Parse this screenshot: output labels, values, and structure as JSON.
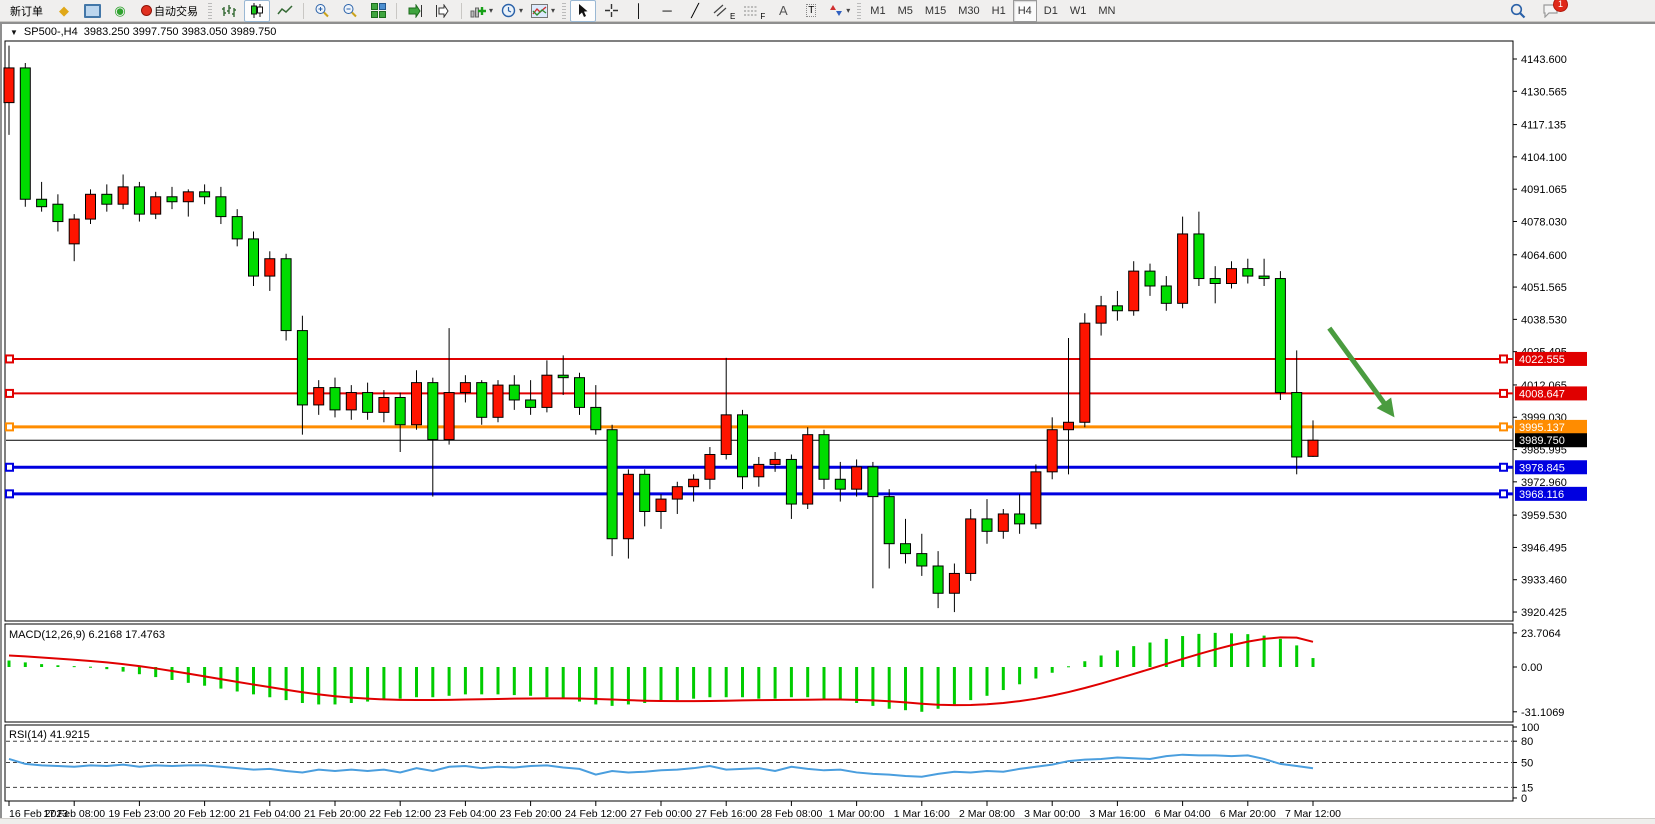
{
  "toolbar": {
    "new_order_label": "新订单",
    "autotrading_label": "自动交易",
    "timeframes": [
      "M1",
      "M5",
      "M15",
      "M30",
      "H1",
      "H4",
      "D1",
      "W1",
      "MN"
    ],
    "active_timeframe": "H4",
    "chat_badge": "1",
    "glyphs": {
      "metaeditor": "◆",
      "signals": "◉",
      "crosshair": "+",
      "vline": "│",
      "hline": "─",
      "trendline": "╱",
      "channel_letter": "E",
      "fibo_letter": "F",
      "text_tool": "A",
      "label_tool": "T",
      "caret": "▾",
      "title_triangle": "▼"
    }
  },
  "chart_window": {
    "symbol": "SP500-,H4",
    "ohlc_text": "3983.250 3997.750 3983.050 3989.750"
  },
  "indicators": {
    "macd_label": "MACD(12,26,9) 6.2168 17.4763",
    "rsi_label": "RSI(14) 41.9215"
  },
  "chart_data": {
    "type": "candlestick",
    "symbol": "SP500-",
    "timeframe": "H4",
    "current_ohlc": {
      "open": 3983.25,
      "high": 3997.75,
      "low": 3983.05,
      "close": 3989.75
    },
    "up_color": "#fe1400",
    "down_color": "#00dc00",
    "y_ticks": [
      "4143.600",
      "4130.565",
      "4117.135",
      "4104.100",
      "4091.065",
      "4078.030",
      "4064.600",
      "4051.565",
      "4038.530",
      "4025.495",
      "4012.065",
      "3999.030",
      "3985.995",
      "3972.960",
      "3959.530",
      "3946.495",
      "3933.460",
      "3920.425"
    ],
    "x_labels": [
      "16 Feb 2023",
      "17 Feb 08:00",
      "19 Feb 23:00",
      "20 Feb 12:00",
      "21 Feb 04:00",
      "21 Feb 20:00",
      "22 Feb 12:00",
      "23 Feb 04:00",
      "23 Feb 20:00",
      "24 Feb 12:00",
      "27 Feb 00:00",
      "27 Feb 16:00",
      "28 Feb 08:00",
      "1 Mar 00:00",
      "1 Mar 16:00",
      "2 Mar 08:00",
      "3 Mar 00:00",
      "3 Mar 16:00",
      "6 Mar 04:00",
      "6 Mar 20:00",
      "7 Mar 12:00"
    ],
    "label_every": 4,
    "candles": [
      [
        4126,
        4149,
        4113,
        4140
      ],
      [
        4140,
        4142,
        4084,
        4087
      ],
      [
        4087,
        4094,
        4082,
        4084
      ],
      [
        4085,
        4089,
        4074,
        4078
      ],
      [
        4069,
        4081,
        4062,
        4079
      ],
      [
        4079,
        4091,
        4077,
        4089
      ],
      [
        4089,
        4093,
        4082,
        4085
      ],
      [
        4085,
        4097,
        4083,
        4092
      ],
      [
        4092,
        4094,
        4078,
        4081
      ],
      [
        4081,
        4090,
        4079,
        4088
      ],
      [
        4088,
        4092,
        4083,
        4086
      ],
      [
        4086,
        4091,
        4080,
        4090
      ],
      [
        4090,
        4093,
        4085,
        4088
      ],
      [
        4088,
        4092,
        4077,
        4080
      ],
      [
        4080,
        4083,
        4068,
        4071
      ],
      [
        4071,
        4074,
        4052,
        4056
      ],
      [
        4056,
        4066,
        4050,
        4063
      ],
      [
        4063,
        4065,
        4030,
        4034
      ],
      [
        4034,
        4040,
        3992,
        4004
      ],
      [
        4004,
        4014,
        4000,
        4011
      ],
      [
        4011,
        4015,
        3999,
        4002
      ],
      [
        4002,
        4012,
        3998,
        4009
      ],
      [
        4009,
        4013,
        3998,
        4001
      ],
      [
        4001,
        4010,
        3997,
        4007
      ],
      [
        4007,
        4009,
        3985,
        3996
      ],
      [
        3996,
        4018,
        3994,
        4013
      ],
      [
        4013,
        4015,
        3967,
        3990
      ],
      [
        3990,
        4035,
        3988,
        4009
      ],
      [
        4009,
        4016,
        4005,
        4013
      ],
      [
        4013,
        4014,
        3996,
        3999
      ],
      [
        3999,
        4014,
        3997,
        4012
      ],
      [
        4012,
        4016,
        4002,
        4006
      ],
      [
        4006,
        4014,
        4000,
        4003
      ],
      [
        4003,
        4022,
        4001,
        4016
      ],
      [
        4016,
        4024,
        4008,
        4015
      ],
      [
        4015,
        4017,
        4000,
        4003
      ],
      [
        4003,
        4012,
        3992,
        3994
      ],
      [
        3994,
        3996,
        3943,
        3950
      ],
      [
        3950,
        3978,
        3942,
        3976
      ],
      [
        3976,
        3978,
        3955,
        3961
      ],
      [
        3961,
        3968,
        3954,
        3966
      ],
      [
        3966,
        3973,
        3960,
        3971
      ],
      [
        3971,
        3976,
        3965,
        3974
      ],
      [
        3974,
        3987,
        3970,
        3984
      ],
      [
        3984,
        4023,
        3982,
        4000
      ],
      [
        4000,
        4002,
        3970,
        3975
      ],
      [
        3975,
        3983,
        3971,
        3980
      ],
      [
        3980,
        3985,
        3977,
        3982
      ],
      [
        3982,
        3984,
        3958,
        3964
      ],
      [
        3964,
        3995,
        3962,
        3992
      ],
      [
        3992,
        3994,
        3970,
        3974
      ],
      [
        3974,
        3981,
        3965,
        3970
      ],
      [
        3970,
        3982,
        3967,
        3979
      ],
      [
        3979,
        3981,
        3930,
        3967
      ],
      [
        3967,
        3970,
        3938,
        3948
      ],
      [
        3948,
        3958,
        3940,
        3944
      ],
      [
        3944,
        3952,
        3935,
        3939
      ],
      [
        3939,
        3945,
        3922,
        3928
      ],
      [
        3928,
        3940,
        3920.4,
        3936
      ],
      [
        3936,
        3962,
        3933,
        3958
      ],
      [
        3958,
        3966,
        3948,
        3953
      ],
      [
        3953,
        3962,
        3950,
        3960
      ],
      [
        3960,
        3968,
        3952,
        3956
      ],
      [
        3956,
        3980,
        3954,
        3977
      ],
      [
        3977,
        3999,
        3974,
        3994
      ],
      [
        3994,
        4031,
        3976,
        3997
      ],
      [
        3997,
        4041,
        3995,
        4037
      ],
      [
        4037,
        4048,
        4032,
        4044
      ],
      [
        4044,
        4050,
        4038,
        4042
      ],
      [
        4042,
        4062,
        4040,
        4058
      ],
      [
        4058,
        4061,
        4048,
        4052
      ],
      [
        4052,
        4056,
        4042,
        4045
      ],
      [
        4045,
        4080,
        4043,
        4073
      ],
      [
        4073,
        4082,
        4052,
        4055
      ],
      [
        4055,
        4060,
        4045,
        4053
      ],
      [
        4053,
        4062,
        4051,
        4059
      ],
      [
        4059,
        4063,
        4053,
        4056
      ],
      [
        4056,
        4063,
        4052,
        4055
      ],
      [
        4055,
        4058,
        4006,
        4009
      ],
      [
        4009,
        4026,
        3976,
        3983
      ],
      [
        3983.25,
        3997.75,
        3983.05,
        3989.75
      ]
    ],
    "price_lines": [
      {
        "price": 4022.555,
        "label": "4022.555",
        "color": "#e00000",
        "width": 2,
        "handles": true
      },
      {
        "price": 4008.647,
        "label": "4008.647",
        "color": "#e00000",
        "width": 2,
        "handles": true
      },
      {
        "price": 3995.137,
        "label": "3995.137",
        "color": "#ff8c00",
        "width": 3,
        "handles": true
      },
      {
        "price": 3989.75,
        "label": "3989.750",
        "color": "#000000",
        "width": 1,
        "handles": false
      },
      {
        "price": 3978.845,
        "label": "3978.845",
        "color": "#0000e0",
        "width": 3,
        "handles": true
      },
      {
        "price": 3968.116,
        "label": "3968.116",
        "color": "#0000e0",
        "width": 3,
        "handles": true
      }
    ],
    "arrow": {
      "slot1": 81.0,
      "price1": 4035,
      "slot2": 85.0,
      "price2": 3999,
      "color": "#4a9c3f"
    },
    "macd": {
      "name": "MACD(12,26,9)",
      "values_text": [
        "6.2168",
        "17.4763"
      ],
      "axis_ticks": [
        "23.7064",
        "0.00",
        "-31.1069"
      ],
      "range": [
        -31.1069,
        23.7064
      ],
      "histogram_color": "#00cc00",
      "signal_color": "#e00000",
      "histogram": [
        4.5,
        3.2,
        2.0,
        1.2,
        0.6,
        0.2,
        -1.5,
        -3.2,
        -5.0,
        -7.0,
        -9.0,
        -11.0,
        -13.0,
        -15.0,
        -17.0,
        -19.0,
        -21.0,
        -23.0,
        -25.0,
        -26.0,
        -26.0,
        -25.0,
        -24.0,
        -23.0,
        -22.0,
        -21.0,
        -21.0,
        -20.0,
        -19.0,
        -19.0,
        -19.0,
        -19.5,
        -20.0,
        -21.0,
        -22.0,
        -24.0,
        -26.0,
        -27.0,
        -26.0,
        -25.0,
        -24.0,
        -23.0,
        -22.0,
        -21.0,
        -21.0,
        -21.0,
        -22.0,
        -22.0,
        -21.0,
        -21.0,
        -22.0,
        -23.0,
        -25.0,
        -27.0,
        -29.0,
        -30.0,
        -31.1,
        -29.0,
        -26.0,
        -23.0,
        -20.0,
        -16.0,
        -12.0,
        -8.0,
        -4.0,
        0.5,
        4.0,
        8.0,
        11.5,
        14.5,
        17.0,
        19.5,
        21.5,
        23.0,
        23.7,
        23.4,
        22.8,
        21.8,
        19.5,
        15.0,
        6.2
      ],
      "signal": [
        8.0,
        7.4,
        6.6,
        5.8,
        5.0,
        4.2,
        3.2,
        2.0,
        0.6,
        -1.0,
        -2.8,
        -4.6,
        -6.5,
        -8.4,
        -10.3,
        -12.2,
        -14.0,
        -15.8,
        -17.5,
        -19.0,
        -20.3,
        -21.3,
        -22.0,
        -22.5,
        -22.8,
        -22.9,
        -22.9,
        -22.8,
        -22.6,
        -22.4,
        -22.2,
        -22.0,
        -21.9,
        -21.8,
        -21.8,
        -21.9,
        -22.2,
        -22.6,
        -23.0,
        -23.4,
        -23.6,
        -23.7,
        -23.7,
        -23.6,
        -23.4,
        -23.2,
        -23.0,
        -22.9,
        -22.8,
        -22.7,
        -22.6,
        -22.6,
        -22.8,
        -23.2,
        -23.8,
        -24.6,
        -25.5,
        -26.2,
        -26.5,
        -26.4,
        -25.9,
        -25.0,
        -23.7,
        -22.0,
        -19.9,
        -17.4,
        -14.6,
        -11.5,
        -8.2,
        -4.8,
        -1.4,
        2.1,
        5.6,
        9.0,
        12.2,
        15.1,
        17.6,
        19.5,
        20.6,
        20.4,
        17.5
      ]
    },
    "rsi": {
      "name": "RSI(14)",
      "value_text": "41.9215",
      "axis_ticks": [
        "100",
        "80",
        "50",
        "15",
        "0"
      ],
      "levels": [
        80,
        50,
        15
      ],
      "range": [
        0,
        100
      ],
      "line_color": "#4a9ede",
      "values": [
        55,
        48,
        46,
        45,
        44,
        46,
        45,
        47,
        44,
        46,
        45,
        46,
        46,
        44,
        42,
        40,
        41,
        38,
        36,
        40,
        38,
        40,
        38,
        40,
        36,
        42,
        38,
        44,
        45,
        42,
        44,
        43,
        45,
        46,
        43,
        41,
        33,
        38,
        36,
        37,
        39,
        40,
        42,
        45,
        40,
        41,
        42,
        38,
        44,
        41,
        39,
        40,
        36,
        34,
        33,
        31,
        30,
        34,
        37,
        36,
        38,
        37,
        41,
        44,
        47,
        52,
        54,
        55,
        57,
        56,
        55,
        59,
        61,
        60,
        60,
        59,
        60,
        55,
        48,
        45,
        41.9
      ]
    }
  }
}
